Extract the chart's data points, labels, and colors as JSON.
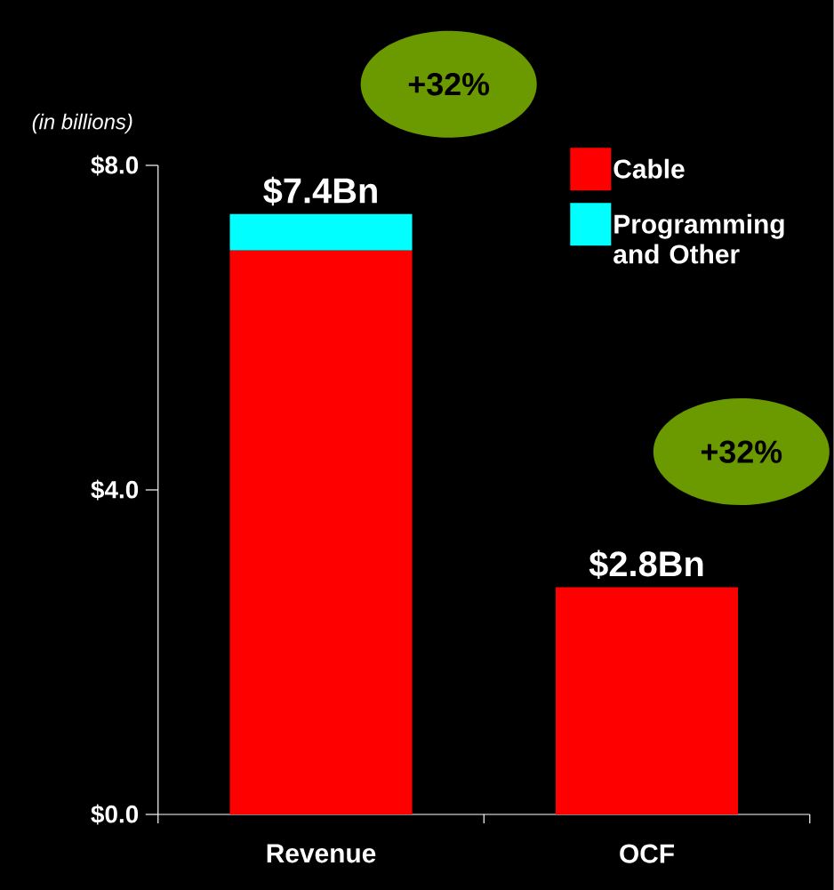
{
  "chart_data": {
    "type": "bar",
    "stacked": true,
    "ylabel": "(in billions)",
    "categories": [
      "Revenue",
      "OCF"
    ],
    "series": [
      {
        "name": "Cable",
        "color": "#ff0000",
        "values": [
          6.95,
          2.8
        ]
      },
      {
        "name": "Programming and Other",
        "color": "#00ffff",
        "values": [
          0.45,
          null
        ]
      }
    ],
    "ylim": [
      0,
      8
    ],
    "yticks": [
      {
        "value": 0,
        "label": "$0.0"
      },
      {
        "value": 4,
        "label": "$4.0"
      },
      {
        "value": 8,
        "label": "$8.0"
      }
    ],
    "totals": [
      "$7.4Bn",
      "$2.8Bn"
    ],
    "annotations": [
      "+32%",
      "+32%"
    ],
    "legend": "top right",
    "grid": false
  }
}
